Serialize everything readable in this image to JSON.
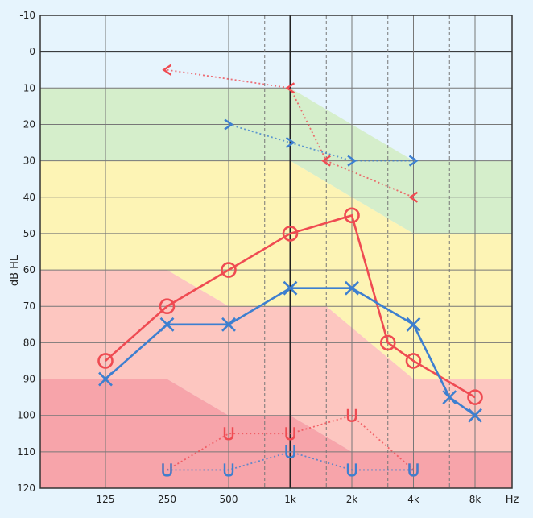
{
  "chart_data": {
    "type": "line",
    "ylabel": "dB HL",
    "xunit": "Hz",
    "ylim": [
      -10,
      120
    ],
    "yticks": [
      -10,
      0,
      10,
      20,
      30,
      40,
      50,
      60,
      70,
      80,
      90,
      100,
      110,
      120
    ],
    "xticks": [
      {
        "freq": 125,
        "label": "125"
      },
      {
        "freq": 250,
        "label": "250"
      },
      {
        "freq": 500,
        "label": "500"
      },
      {
        "freq": 1000,
        "label": "1k"
      },
      {
        "freq": 2000,
        "label": "2k"
      },
      {
        "freq": 4000,
        "label": "4k"
      },
      {
        "freq": 8000,
        "label": "8k"
      }
    ],
    "half_octave_gridlines": [
      750,
      1500,
      3000,
      6000
    ],
    "grid": true,
    "bands": [
      {
        "color": "#d5eecb",
        "upper": [
          [
            125,
            10
          ],
          [
            1000,
            10
          ],
          [
            4000,
            30
          ],
          [
            8000,
            30
          ]
        ],
        "lower": [
          [
            125,
            30
          ],
          [
            1000,
            30
          ],
          [
            4000,
            50
          ],
          [
            8000,
            50
          ]
        ]
      },
      {
        "color": "#fdf4b5",
        "upper": [
          [
            125,
            30
          ],
          [
            1000,
            30
          ],
          [
            4000,
            50
          ],
          [
            8000,
            50
          ]
        ],
        "lower": [
          [
            125,
            60
          ],
          [
            250,
            60
          ],
          [
            500,
            70
          ],
          [
            1000,
            70
          ],
          [
            1500,
            70
          ],
          [
            4000,
            90
          ],
          [
            8000,
            90
          ]
        ]
      },
      {
        "color": "#fdc6c0",
        "upper": [
          [
            125,
            60
          ],
          [
            250,
            60
          ],
          [
            500,
            70
          ],
          [
            1000,
            70
          ],
          [
            1500,
            70
          ],
          [
            4000,
            90
          ],
          [
            8000,
            90
          ]
        ],
        "lower": [
          [
            125,
            90
          ],
          [
            250,
            90
          ],
          [
            500,
            100
          ],
          [
            1000,
            100
          ],
          [
            2000,
            110
          ],
          [
            8000,
            110
          ]
        ]
      },
      {
        "color": "#f7a4aa",
        "upper": [
          [
            125,
            90
          ],
          [
            250,
            90
          ],
          [
            500,
            100
          ],
          [
            1000,
            100
          ],
          [
            2000,
            110
          ],
          [
            8000,
            110
          ]
        ],
        "lower": [
          [
            125,
            120
          ],
          [
            8000,
            120
          ]
        ]
      }
    ],
    "series": [
      {
        "marker": "circle",
        "color": "#ef4b52",
        "style": "solid",
        "points": [
          [
            125,
            85
          ],
          [
            250,
            70
          ],
          [
            500,
            60
          ],
          [
            1000,
            50
          ],
          [
            2000,
            45
          ],
          [
            3000,
            80
          ],
          [
            4000,
            85
          ],
          [
            8000,
            95
          ]
        ]
      },
      {
        "marker": "cross",
        "color": "#3d7fd0",
        "style": "solid",
        "points": [
          [
            125,
            90
          ],
          [
            250,
            75
          ],
          [
            500,
            75
          ],
          [
            1000,
            65
          ],
          [
            2000,
            65
          ],
          [
            4000,
            75
          ],
          [
            6000,
            95
          ],
          [
            8000,
            100
          ]
        ]
      },
      {
        "marker": "bracket-left",
        "color": "#ef4b52",
        "style": "dotted",
        "points": [
          [
            250,
            5
          ],
          [
            1000,
            10
          ],
          [
            1500,
            30
          ],
          [
            4000,
            40
          ]
        ]
      },
      {
        "marker": "bracket-right",
        "color": "#3d7fd0",
        "style": "dotted",
        "points": [
          [
            500,
            20
          ],
          [
            1000,
            25
          ],
          [
            2000,
            30
          ],
          [
            4000,
            30
          ]
        ]
      },
      {
        "marker": "u",
        "color": "#ef4b52",
        "style": "dotted",
        "points": [
          [
            250,
            115
          ],
          [
            500,
            105
          ],
          [
            1000,
            105
          ],
          [
            2000,
            100
          ],
          [
            4000,
            115
          ]
        ]
      },
      {
        "marker": "u",
        "color": "#3d7fd0",
        "style": "dotted",
        "points": [
          [
            250,
            115
          ],
          [
            500,
            115
          ],
          [
            1000,
            110
          ],
          [
            2000,
            115
          ],
          [
            4000,
            115
          ]
        ]
      }
    ]
  }
}
